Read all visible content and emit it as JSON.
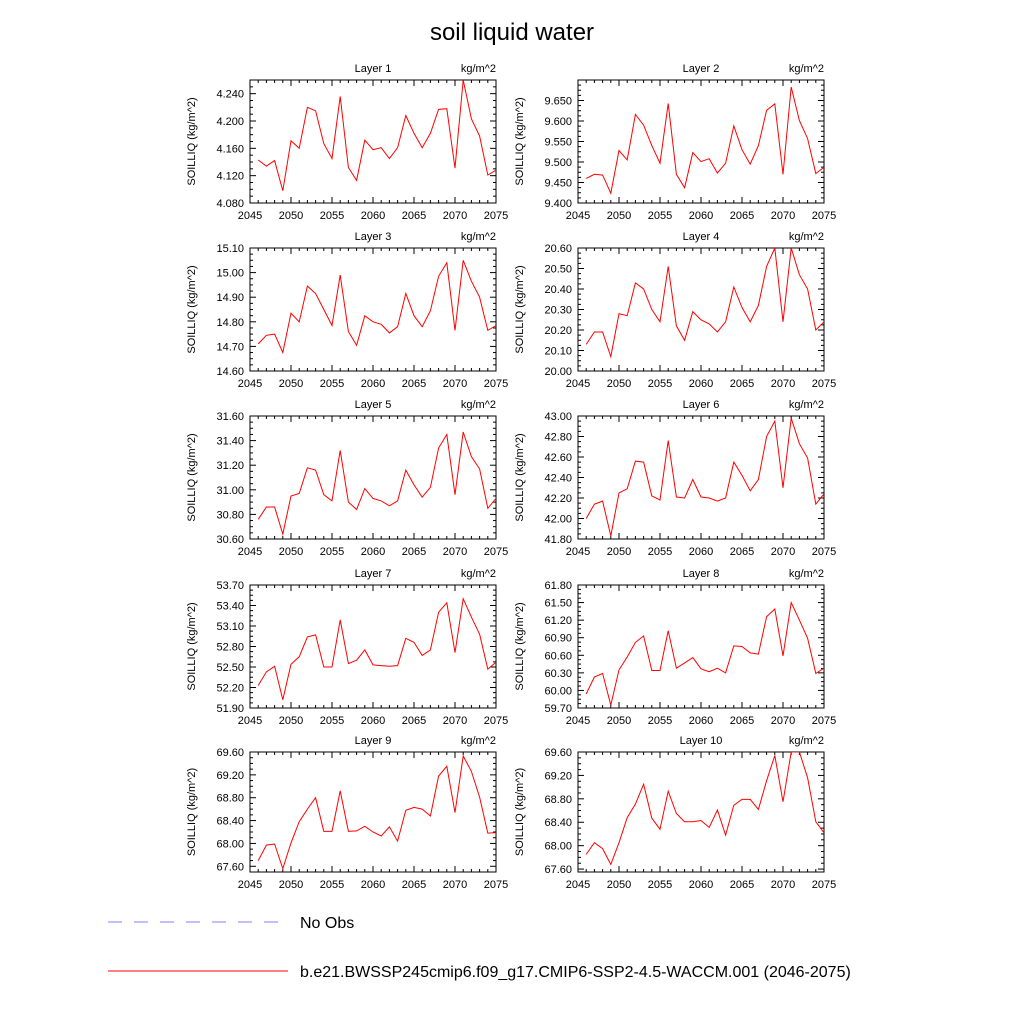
{
  "figure": {
    "title": "soil liquid water",
    "legend": [
      {
        "label": "No Obs",
        "color": "#8080ff",
        "style": "dashed"
      },
      {
        "label": "b.e21.BWSSP245cmip6.f09_g17.CMIP6-SSP2-4.5-WACCM.001 (2046-2075)",
        "color": "#ff0000",
        "style": "solid"
      }
    ]
  },
  "chart_data": [
    {
      "type": "line",
      "title": "Layer 1",
      "units": "kg/m^2",
      "xlabel": "",
      "ylabel": "SOILLIQ  (kg/m^2)",
      "xlim": [
        2045,
        2075
      ],
      "ylim": [
        4.08,
        4.26
      ],
      "xticks": [
        "2045",
        "2050",
        "2055",
        "2060",
        "2065",
        "2070",
        "2075"
      ],
      "yticks": [
        "4.080",
        "4.120",
        "4.160",
        "4.200",
        "4.240"
      ],
      "series": [
        {
          "name": "b.e21.BWSSP245cmip6.f09_g17.CMIP6-SSP2-4.5-WACCM.001",
          "color": "#ff0000",
          "x": [
            2046,
            2047,
            2048,
            2049,
            2050,
            2051,
            2052,
            2053,
            2054,
            2055,
            2056,
            2057,
            2058,
            2059,
            2060,
            2061,
            2062,
            2063,
            2064,
            2065,
            2066,
            2067,
            2068,
            2069,
            2070,
            2071,
            2072,
            2073,
            2074,
            2075
          ],
          "y": [
            4.143,
            4.134,
            4.142,
            4.098,
            4.171,
            4.16,
            4.22,
            4.215,
            4.167,
            4.145,
            4.236,
            4.132,
            4.113,
            4.172,
            4.158,
            4.161,
            4.145,
            4.161,
            4.208,
            4.182,
            4.161,
            4.182,
            4.217,
            4.218,
            4.131,
            4.26,
            4.203,
            4.178,
            4.121,
            4.128
          ]
        }
      ]
    },
    {
      "type": "line",
      "title": "Layer 2",
      "units": "kg/m^2",
      "xlabel": "",
      "ylabel": "SOILLIQ  (kg/m^2)",
      "xlim": [
        2045,
        2075
      ],
      "ylim": [
        9.4,
        9.7
      ],
      "xticks": [
        "2045",
        "2050",
        "2055",
        "2060",
        "2065",
        "2070",
        "2075"
      ],
      "yticks": [
        "9.400",
        "9.450",
        "9.500",
        "9.550",
        "9.600",
        "9.650"
      ],
      "series": [
        {
          "name": "b.e21.BWSSP245cmip6.f09_g17.CMIP6-SSP2-4.5-WACCM.001",
          "color": "#ff0000",
          "x": [
            2046,
            2047,
            2048,
            2049,
            2050,
            2051,
            2052,
            2053,
            2054,
            2055,
            2056,
            2057,
            2058,
            2059,
            2060,
            2061,
            2062,
            2063,
            2064,
            2065,
            2066,
            2067,
            2068,
            2069,
            2070,
            2071,
            2072,
            2073,
            2074,
            2075
          ],
          "y": [
            9.46,
            9.47,
            9.468,
            9.424,
            9.528,
            9.505,
            9.616,
            9.59,
            9.54,
            9.497,
            9.643,
            9.47,
            9.437,
            9.523,
            9.501,
            9.508,
            9.473,
            9.497,
            9.588,
            9.53,
            9.495,
            9.54,
            9.626,
            9.642,
            9.47,
            9.683,
            9.601,
            9.557,
            9.472,
            9.487
          ]
        }
      ]
    },
    {
      "type": "line",
      "title": "Layer 3",
      "units": "kg/m^2",
      "xlabel": "",
      "ylabel": "SOILLIQ  (kg/m^2)",
      "xlim": [
        2045,
        2075
      ],
      "ylim": [
        14.6,
        15.1
      ],
      "xticks": [
        "2045",
        "2050",
        "2055",
        "2060",
        "2065",
        "2070",
        "2075"
      ],
      "yticks": [
        "14.60",
        "14.70",
        "14.80",
        "14.90",
        "15.00",
        "15.10"
      ],
      "series": [
        {
          "name": "b.e21.BWSSP245cmip6.f09_g17.CMIP6-SSP2-4.5-WACCM.001",
          "color": "#ff0000",
          "x": [
            2046,
            2047,
            2048,
            2049,
            2050,
            2051,
            2052,
            2053,
            2054,
            2055,
            2056,
            2057,
            2058,
            2059,
            2060,
            2061,
            2062,
            2063,
            2064,
            2065,
            2066,
            2067,
            2068,
            2069,
            2070,
            2071,
            2072,
            2073,
            2074,
            2075
          ],
          "y": [
            14.71,
            14.745,
            14.75,
            14.675,
            14.835,
            14.8,
            14.945,
            14.915,
            14.85,
            14.785,
            14.99,
            14.76,
            14.705,
            14.825,
            14.8,
            14.79,
            14.755,
            14.78,
            14.915,
            14.825,
            14.78,
            14.845,
            14.985,
            15.04,
            14.765,
            15.05,
            14.965,
            14.9,
            14.765,
            14.785
          ]
        }
      ]
    },
    {
      "type": "line",
      "title": "Layer 4",
      "units": "kg/m^2",
      "xlabel": "",
      "ylabel": "SOILLIQ  (kg/m^2)",
      "xlim": [
        2045,
        2075
      ],
      "ylim": [
        20.0,
        20.6
      ],
      "xticks": [
        "2045",
        "2050",
        "2055",
        "2060",
        "2065",
        "2070",
        "2075"
      ],
      "yticks": [
        "20.00",
        "20.10",
        "20.20",
        "20.30",
        "20.40",
        "20.50",
        "20.60"
      ],
      "series": [
        {
          "name": "b.e21.BWSSP245cmip6.f09_g17.CMIP6-SSP2-4.5-WACCM.001",
          "color": "#ff0000",
          "x": [
            2046,
            2047,
            2048,
            2049,
            2050,
            2051,
            2052,
            2053,
            2054,
            2055,
            2056,
            2057,
            2058,
            2059,
            2060,
            2061,
            2062,
            2063,
            2064,
            2065,
            2066,
            2067,
            2068,
            2069,
            2070,
            2071,
            2072,
            2073,
            2074,
            2075
          ],
          "y": [
            20.13,
            20.19,
            20.19,
            20.07,
            20.28,
            20.27,
            20.43,
            20.4,
            20.3,
            20.24,
            20.51,
            20.22,
            20.15,
            20.29,
            20.25,
            20.23,
            20.19,
            20.24,
            20.41,
            20.31,
            20.24,
            20.32,
            20.51,
            20.6,
            20.24,
            20.6,
            20.47,
            20.4,
            20.2,
            20.24
          ]
        }
      ]
    },
    {
      "type": "line",
      "title": "Layer 5",
      "units": "kg/m^2",
      "xlabel": "",
      "ylabel": "SOILLIQ  (kg/m^2)",
      "xlim": [
        2045,
        2075
      ],
      "ylim": [
        30.6,
        31.6
      ],
      "xticks": [
        "2045",
        "2050",
        "2055",
        "2060",
        "2065",
        "2070",
        "2075"
      ],
      "yticks": [
        "30.60",
        "30.80",
        "31.00",
        "31.20",
        "31.40",
        "31.60"
      ],
      "series": [
        {
          "name": "b.e21.BWSSP245cmip6.f09_g17.CMIP6-SSP2-4.5-WACCM.001",
          "color": "#ff0000",
          "x": [
            2046,
            2047,
            2048,
            2049,
            2050,
            2051,
            2052,
            2053,
            2054,
            2055,
            2056,
            2057,
            2058,
            2059,
            2060,
            2061,
            2062,
            2063,
            2064,
            2065,
            2066,
            2067,
            2068,
            2069,
            2070,
            2071,
            2072,
            2073,
            2074,
            2075
          ],
          "y": [
            30.76,
            30.86,
            30.86,
            30.64,
            30.95,
            30.97,
            31.18,
            31.16,
            30.96,
            30.91,
            31.32,
            30.9,
            30.84,
            31.01,
            30.93,
            30.91,
            30.87,
            30.91,
            31.16,
            31.04,
            30.94,
            31.02,
            31.34,
            31.45,
            30.96,
            31.47,
            31.27,
            31.17,
            30.85,
            30.93
          ]
        }
      ]
    },
    {
      "type": "line",
      "title": "Layer 6",
      "units": "kg/m^2",
      "xlabel": "",
      "ylabel": "SOILLIQ  (kg/m^2)",
      "xlim": [
        2045,
        2075
      ],
      "ylim": [
        41.8,
        43.0
      ],
      "xticks": [
        "2045",
        "2050",
        "2055",
        "2060",
        "2065",
        "2070",
        "2075"
      ],
      "yticks": [
        "41.80",
        "42.00",
        "42.20",
        "42.40",
        "42.60",
        "42.80",
        "43.00"
      ],
      "series": [
        {
          "name": "b.e21.BWSSP245cmip6.f09_g17.CMIP6-SSP2-4.5-WACCM.001",
          "color": "#ff0000",
          "x": [
            2046,
            2047,
            2048,
            2049,
            2050,
            2051,
            2052,
            2053,
            2054,
            2055,
            2056,
            2057,
            2058,
            2059,
            2060,
            2061,
            2062,
            2063,
            2064,
            2065,
            2066,
            2067,
            2068,
            2069,
            2070,
            2071,
            2072,
            2073,
            2074,
            2075
          ],
          "y": [
            42.0,
            42.14,
            42.17,
            41.83,
            42.25,
            42.29,
            42.56,
            42.55,
            42.22,
            42.18,
            42.76,
            42.21,
            42.2,
            42.38,
            42.21,
            42.2,
            42.17,
            42.2,
            42.55,
            42.42,
            42.27,
            42.38,
            42.8,
            42.95,
            42.3,
            42.98,
            42.73,
            42.59,
            42.14,
            42.24
          ]
        }
      ]
    },
    {
      "type": "line",
      "title": "Layer 7",
      "units": "kg/m^2",
      "xlabel": "",
      "ylabel": "SOILLIQ  (kg/m^2)",
      "xlim": [
        2045,
        2075
      ],
      "ylim": [
        51.9,
        53.7
      ],
      "xticks": [
        "2045",
        "2050",
        "2055",
        "2060",
        "2065",
        "2070",
        "2075"
      ],
      "yticks": [
        "51.90",
        "52.20",
        "52.50",
        "52.80",
        "53.10",
        "53.40",
        "53.70"
      ],
      "series": [
        {
          "name": "b.e21.BWSSP245cmip6.f09_g17.CMIP6-SSP2-4.5-WACCM.001",
          "color": "#ff0000",
          "x": [
            2046,
            2047,
            2048,
            2049,
            2050,
            2051,
            2052,
            2053,
            2054,
            2055,
            2056,
            2057,
            2058,
            2059,
            2060,
            2061,
            2062,
            2063,
            2064,
            2065,
            2066,
            2067,
            2068,
            2069,
            2070,
            2071,
            2072,
            2073,
            2074,
            2075
          ],
          "y": [
            52.23,
            52.43,
            52.51,
            52.02,
            52.54,
            52.65,
            52.94,
            52.97,
            52.5,
            52.5,
            53.19,
            52.55,
            52.6,
            52.75,
            52.53,
            52.52,
            52.51,
            52.52,
            52.92,
            52.86,
            52.67,
            52.75,
            53.3,
            53.44,
            52.71,
            53.5,
            53.23,
            52.98,
            52.47,
            52.57
          ]
        }
      ]
    },
    {
      "type": "line",
      "title": "Layer 8",
      "units": "kg/m^2",
      "xlabel": "",
      "ylabel": "SOILLIQ  (kg/m^2)",
      "xlim": [
        2045,
        2075
      ],
      "ylim": [
        59.7,
        61.8
      ],
      "xticks": [
        "2045",
        "2050",
        "2055",
        "2060",
        "2065",
        "2070",
        "2075"
      ],
      "yticks": [
        "59.70",
        "60.00",
        "60.30",
        "60.60",
        "60.90",
        "61.20",
        "61.50",
        "61.80"
      ],
      "series": [
        {
          "name": "b.e21.BWSSP245cmip6.f09_g17.CMIP6-SSP2-4.5-WACCM.001",
          "color": "#ff0000",
          "x": [
            2046,
            2047,
            2048,
            2049,
            2050,
            2051,
            2052,
            2053,
            2054,
            2055,
            2056,
            2057,
            2058,
            2059,
            2060,
            2061,
            2062,
            2063,
            2064,
            2065,
            2066,
            2067,
            2068,
            2069,
            2070,
            2071,
            2072,
            2073,
            2074,
            2075
          ],
          "y": [
            59.94,
            60.23,
            60.29,
            59.75,
            60.35,
            60.57,
            60.82,
            60.93,
            60.34,
            60.34,
            61.02,
            60.38,
            60.47,
            60.56,
            60.37,
            60.32,
            60.38,
            60.3,
            60.76,
            60.75,
            60.64,
            60.62,
            61.26,
            61.39,
            60.59,
            61.5,
            61.2,
            60.89,
            60.29,
            60.38
          ]
        }
      ]
    },
    {
      "type": "line",
      "title": "Layer 9",
      "units": "kg/m^2",
      "xlabel": "",
      "ylabel": "SOILLIQ  (kg/m^2)",
      "xlim": [
        2045,
        2075
      ],
      "ylim": [
        67.5,
        69.6
      ],
      "xticks": [
        "2045",
        "2050",
        "2055",
        "2060",
        "2065",
        "2070",
        "2075"
      ],
      "yticks": [
        "67.60",
        "68.00",
        "68.40",
        "68.80",
        "69.20",
        "69.60"
      ],
      "series": [
        {
          "name": "b.e21.BWSSP245cmip6.f09_g17.CMIP6-SSP2-4.5-WACCM.001",
          "color": "#ff0000",
          "x": [
            2046,
            2047,
            2048,
            2049,
            2050,
            2051,
            2052,
            2053,
            2054,
            2055,
            2056,
            2057,
            2058,
            2059,
            2060,
            2061,
            2062,
            2063,
            2064,
            2065,
            2066,
            2067,
            2068,
            2069,
            2070,
            2071,
            2072,
            2073,
            2074,
            2075
          ],
          "y": [
            67.7,
            67.97,
            67.99,
            67.56,
            68.01,
            68.38,
            68.6,
            68.8,
            68.21,
            68.21,
            68.92,
            68.21,
            68.22,
            68.3,
            68.2,
            68.13,
            68.29,
            68.04,
            68.58,
            68.63,
            68.6,
            68.48,
            69.18,
            69.35,
            68.54,
            69.53,
            69.26,
            68.81,
            68.18,
            68.19
          ]
        }
      ]
    },
    {
      "type": "line",
      "title": "Layer 10",
      "units": "kg/m^2",
      "xlabel": "",
      "ylabel": "SOILLIQ  (kg/m^2)",
      "xlim": [
        2045,
        2075
      ],
      "ylim": [
        67.55,
        69.6
      ],
      "xticks": [
        "2045",
        "2050",
        "2055",
        "2060",
        "2065",
        "2070",
        "2075"
      ],
      "yticks": [
        "67.60",
        "68.00",
        "68.40",
        "68.80",
        "69.20",
        "69.60"
      ],
      "series": [
        {
          "name": "b.e21.BWSSP245cmip6.f09_g17.CMIP6-SSP2-4.5-WACCM.001",
          "color": "#ff0000",
          "x": [
            2046,
            2047,
            2048,
            2049,
            2050,
            2051,
            2052,
            2053,
            2054,
            2055,
            2056,
            2057,
            2058,
            2059,
            2060,
            2061,
            2062,
            2063,
            2064,
            2065,
            2066,
            2067,
            2068,
            2069,
            2070,
            2071,
            2072,
            2073,
            2074,
            2075
          ],
          "y": [
            67.85,
            68.05,
            67.95,
            67.68,
            68.05,
            68.48,
            68.71,
            69.05,
            68.47,
            68.28,
            68.93,
            68.55,
            68.41,
            68.41,
            68.43,
            68.31,
            68.61,
            68.18,
            68.69,
            68.79,
            68.79,
            68.62,
            69.11,
            69.54,
            68.75,
            69.6,
            69.6,
            69.16,
            68.41,
            68.22
          ]
        }
      ]
    }
  ]
}
